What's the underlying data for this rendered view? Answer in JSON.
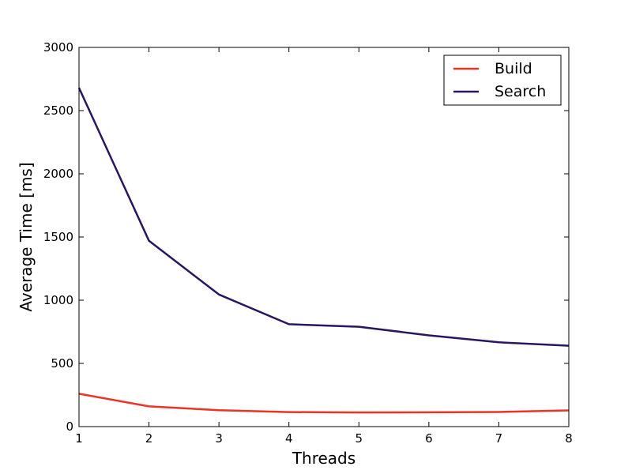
{
  "chart_data": {
    "type": "line",
    "title": "",
    "xlabel": "Threads",
    "ylabel": "Average Time [ms]",
    "xlim": [
      1,
      8
    ],
    "ylim": [
      0,
      3000
    ],
    "x_ticks": [
      1,
      2,
      3,
      4,
      5,
      6,
      7,
      8
    ],
    "y_ticks": [
      0,
      500,
      1000,
      1500,
      2000,
      2500,
      3000
    ],
    "grid": false,
    "legend_position": "top-right",
    "x": [
      1,
      2,
      3,
      4,
      5,
      6,
      7,
      8
    ],
    "series": [
      {
        "name": "Build",
        "color": "#ee3322",
        "values": [
          260,
          160,
          130,
          115,
          112,
          113,
          116,
          128
        ]
      },
      {
        "name": "Search",
        "color": "#2a1464",
        "values": [
          2680,
          1470,
          1045,
          810,
          790,
          722,
          667,
          640
        ]
      }
    ]
  }
}
